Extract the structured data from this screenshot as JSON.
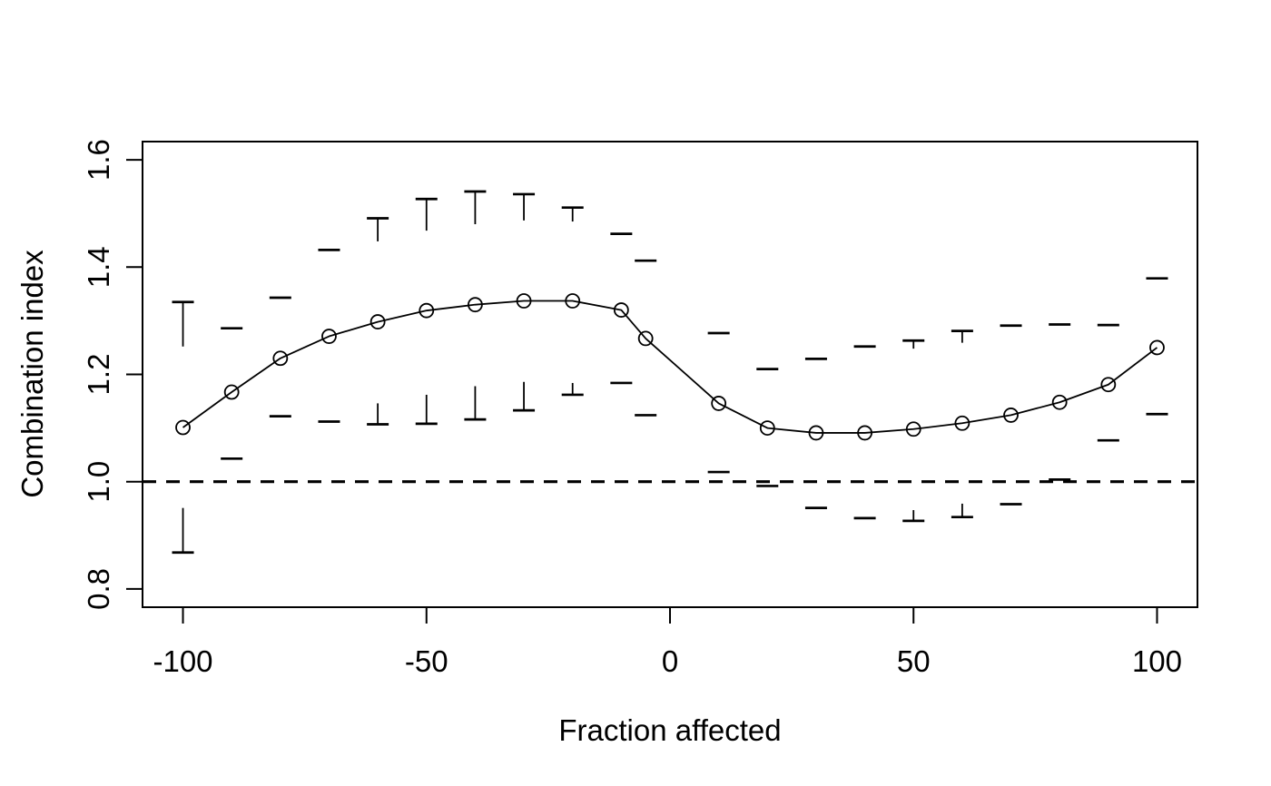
{
  "figure": {
    "background": "#ffffff",
    "foreground": "#000000"
  },
  "chart_data": {
    "type": "line",
    "title": "",
    "xlabel": "Fraction affected",
    "ylabel": "Combination index",
    "xlim": [
      -108.3,
      108.3
    ],
    "ylim": [
      0.766,
      1.634
    ],
    "x_ticks": {
      "values": [
        -100,
        -50,
        0,
        50,
        100
      ],
      "labels": [
        "-100",
        "-50",
        "0",
        "50",
        "100"
      ]
    },
    "y_ticks": {
      "values": [
        0.8,
        1.0,
        1.2,
        1.4,
        1.6
      ],
      "labels": [
        "0.8",
        "1.0",
        "1.2",
        "1.4",
        "1.6"
      ]
    },
    "grid": false,
    "legend": "none",
    "reference_line": {
      "y": 1.0,
      "style": "dashed"
    },
    "marker": "open-circle",
    "error_bar_gap": 0.15,
    "series": [
      {
        "name": "combination-index-vs-fraction-affected",
        "points": [
          {
            "x": -100,
            "ci": 1.101,
            "lo": 0.868,
            "lo_in": 0.951,
            "hi": 1.335,
            "hi_in": 1.252
          },
          {
            "x": -90,
            "ci": 1.167,
            "lo": 1.043,
            "lo_in": 1.043,
            "hi": 1.286,
            "hi_in": 1.286
          },
          {
            "x": -80,
            "ci": 1.23,
            "lo": 1.122,
            "lo_in": 1.122,
            "hi": 1.343,
            "hi_in": 1.343
          },
          {
            "x": -70,
            "ci": 1.271,
            "lo": 1.112,
            "lo_in": 1.112,
            "hi": 1.432,
            "hi_in": 1.432
          },
          {
            "x": -60,
            "ci": 1.298,
            "lo": 1.107,
            "lo_in": 1.146,
            "hi": 1.491,
            "hi_in": 1.448
          },
          {
            "x": -50,
            "ci": 1.319,
            "lo": 1.108,
            "lo_in": 1.162,
            "hi": 1.527,
            "hi_in": 1.468
          },
          {
            "x": -40,
            "ci": 1.33,
            "lo": 1.116,
            "lo_in": 1.178,
            "hi": 1.541,
            "hi_in": 1.48
          },
          {
            "x": -30,
            "ci": 1.337,
            "lo": 1.133,
            "lo_in": 1.186,
            "hi": 1.536,
            "hi_in": 1.487
          },
          {
            "x": -20,
            "ci": 1.337,
            "lo": 1.162,
            "lo_in": 1.184,
            "hi": 1.511,
            "hi_in": 1.485
          },
          {
            "x": -10,
            "ci": 1.32,
            "lo": 1.184,
            "lo_in": 1.184,
            "hi": 1.462,
            "hi_in": 1.462
          },
          {
            "x": -5,
            "ci": 1.267,
            "lo": 1.124,
            "lo_in": 1.124,
            "hi": 1.412,
            "hi_in": 1.412
          },
          {
            "x": 10,
            "ci": 1.146,
            "lo": 1.018,
            "lo_in": 1.018,
            "hi": 1.277,
            "hi_in": 1.277
          },
          {
            "x": 20,
            "ci": 1.1,
            "lo": 0.992,
            "lo_in": 0.992,
            "hi": 1.21,
            "hi_in": 1.21
          },
          {
            "x": 30,
            "ci": 1.091,
            "lo": 0.951,
            "lo_in": 0.951,
            "hi": 1.229,
            "hi_in": 1.229
          },
          {
            "x": 40,
            "ci": 1.091,
            "lo": 0.932,
            "lo_in": 0.932,
            "hi": 1.252,
            "hi_in": 1.252
          },
          {
            "x": 50,
            "ci": 1.098,
            "lo": 0.927,
            "lo_in": 0.947,
            "hi": 1.263,
            "hi_in": 1.248
          },
          {
            "x": 60,
            "ci": 1.109,
            "lo": 0.934,
            "lo_in": 0.959,
            "hi": 1.281,
            "hi_in": 1.259
          },
          {
            "x": 70,
            "ci": 1.124,
            "lo": 0.958,
            "lo_in": 0.958,
            "hi": 1.291,
            "hi_in": 1.291
          },
          {
            "x": 80,
            "ci": 1.148,
            "lo": 1.004,
            "lo_in": 1.004,
            "hi": 1.293,
            "hi_in": 1.293
          },
          {
            "x": 90,
            "ci": 1.181,
            "lo": 1.077,
            "lo_in": 1.077,
            "hi": 1.292,
            "hi_in": 1.292
          },
          {
            "x": 100,
            "ci": 1.25,
            "lo": 1.126,
            "lo_in": 1.126,
            "hi": 1.379,
            "hi_in": 1.379
          }
        ]
      }
    ]
  }
}
